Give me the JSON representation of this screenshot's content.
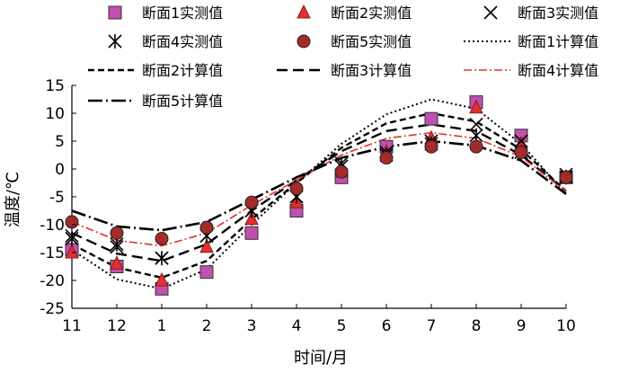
{
  "chart_data": {
    "type": "line",
    "title": "",
    "xlabel": "时间/月",
    "ylabel": "温度/℃",
    "categories": [
      "11",
      "12",
      "1",
      "2",
      "3",
      "4",
      "5",
      "6",
      "7",
      "8",
      "9",
      "10"
    ],
    "ylim": [
      -25,
      15
    ],
    "yticks": [
      15,
      10,
      5,
      0,
      -5,
      -10,
      -15,
      -20,
      -25
    ],
    "grid": false,
    "legend_placement": "top",
    "measured_series": [
      {
        "name": "断面1实测值",
        "marker": "square",
        "color": "#c04fb0",
        "values": [
          -14.5,
          -17.5,
          -21.5,
          -18.5,
          -11.5,
          -7.5,
          -1.5,
          4,
          9,
          12,
          6,
          -1.5
        ]
      },
      {
        "name": "断面2实测值",
        "marker": "triangle",
        "color": "#e03030",
        "values": [
          -15,
          -17,
          -20,
          -14,
          -9,
          -6,
          -0.5,
          3,
          5.5,
          11,
          4.5,
          -1.5
        ]
      },
      {
        "name": "断面3实测值",
        "marker": "x",
        "color": "#000000",
        "values": [
          -12,
          -14,
          -16,
          -12,
          -7.5,
          -5,
          1,
          3,
          5,
          8,
          5,
          -1
        ]
      },
      {
        "name": "断面4实测值",
        "marker": "asterisk",
        "color": "#000000",
        "values": [
          -12.5,
          -13.5,
          -16,
          -12,
          -7.5,
          -5,
          0.5,
          2.5,
          4.5,
          6,
          3,
          -1.5
        ]
      },
      {
        "name": "断面5实测值",
        "marker": "circle",
        "color": "#a52a2a",
        "values": [
          -9.5,
          -11.5,
          -12.5,
          -10.5,
          -6,
          -3.5,
          -0.5,
          2,
          4,
          4,
          3,
          -1.5
        ]
      }
    ],
    "calculated_series": [
      {
        "name": "断面1计算值",
        "dash": "2,3",
        "width": 2,
        "color": "#000000",
        "values": [
          -14.5,
          -19.8,
          -21.5,
          -18,
          -10,
          -2.5,
          4.5,
          9.8,
          12.5,
          10.8,
          4.5,
          -4.5
        ]
      },
      {
        "name": "断面2计算值",
        "dash": "7,4",
        "width": 2.4,
        "color": "#000000",
        "values": [
          -13.5,
          -17.7,
          -19.5,
          -16.5,
          -9,
          -2.5,
          3.8,
          8.2,
          10,
          8.5,
          3.5,
          -4
        ]
      },
      {
        "name": "断面3计算值",
        "dash": "12,6",
        "width": 2.4,
        "color": "#000000",
        "values": [
          -11.5,
          -15.2,
          -16.5,
          -13.5,
          -7.5,
          -2,
          3.2,
          6.8,
          8,
          6.8,
          2.5,
          -4
        ]
      },
      {
        "name": "断面4计算值",
        "dash": "9,3,2,3",
        "width": 1.6,
        "color": "#e03030",
        "values": [
          -9.5,
          -12.8,
          -13.8,
          -11.5,
          -6.5,
          -2,
          2.5,
          5.5,
          6.5,
          5.5,
          2.2,
          -4
        ]
      },
      {
        "name": "断面5计算值",
        "dash": "16,4,2,4",
        "width": 2.6,
        "color": "#000000",
        "values": [
          -7.5,
          -10.3,
          -11,
          -9.5,
          -5.5,
          -1.5,
          2,
          4,
          5,
          4.2,
          1.5,
          -4.5
        ]
      }
    ],
    "legend": {
      "order": [
        "断面1实测值",
        "断面2实测值",
        "断面3实测值",
        "断面4实测值",
        "断面5实测值",
        "断面1计算值",
        "断面2计算值",
        "断面3计算值",
        "断面4计算值",
        "断面5计算值"
      ]
    }
  }
}
